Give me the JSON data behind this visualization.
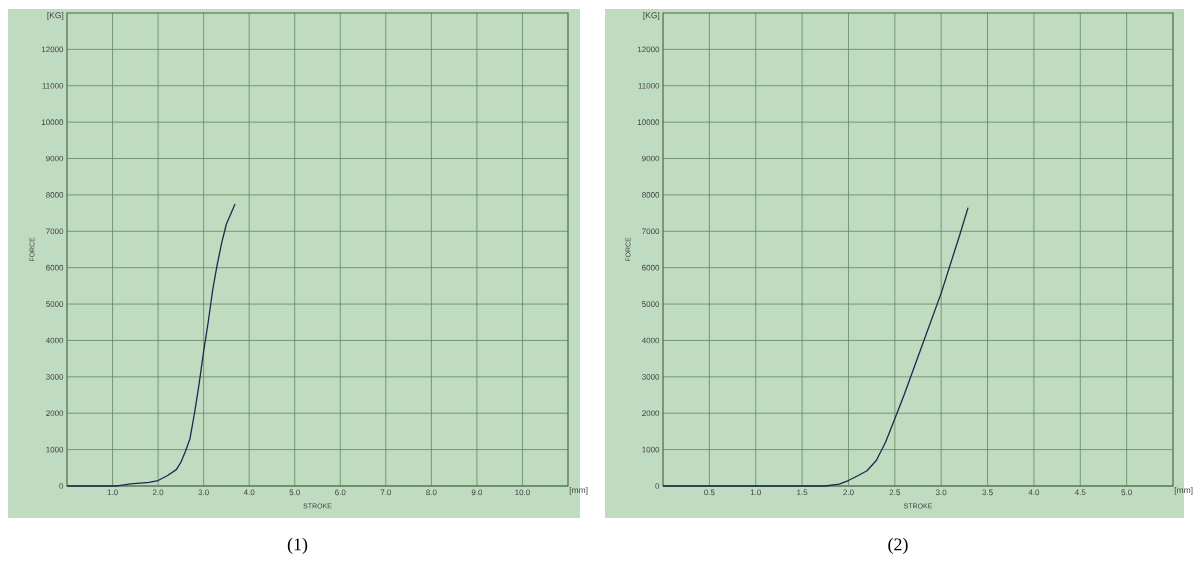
{
  "chart_data": [
    {
      "type": "line",
      "title": "(1)",
      "xlabel": "STROKE",
      "ylabel": "FORCE",
      "annotations": [
        "[KG]",
        "[mm]"
      ],
      "series": [
        {
          "color": "#1c2850",
          "x": [
            0,
            0.5,
            1.1,
            1.4,
            1.8,
            2.0,
            2.2,
            2.4,
            2.5,
            2.6,
            2.7,
            2.8,
            2.9,
            3.0,
            3.1,
            3.2,
            3.3,
            3.4,
            3.5,
            3.69
          ],
          "values": [
            0,
            0,
            0,
            60,
            100,
            150,
            280,
            450,
            650,
            950,
            1300,
            2000,
            2800,
            3700,
            4500,
            5400,
            6100,
            6700,
            7200,
            7750
          ]
        }
      ],
      "xlim": [
        0,
        11
      ],
      "ylim": [
        0,
        13000
      ],
      "xticks": [
        {
          "value": 1,
          "label": "1.0"
        },
        {
          "value": 2,
          "label": "2.0"
        },
        {
          "value": 3,
          "label": "3.0"
        },
        {
          "value": 4,
          "label": "4.0"
        },
        {
          "value": 5,
          "label": "5.0"
        },
        {
          "value": 6,
          "label": "6.0"
        },
        {
          "value": 7,
          "label": "7.0"
        },
        {
          "value": 8,
          "label": "8.0"
        },
        {
          "value": 9,
          "label": "9.0"
        },
        {
          "value": 10,
          "label": "10.0"
        }
      ],
      "yticks": [
        0,
        1000,
        2000,
        3000,
        4000,
        5000,
        6000,
        7000,
        8000,
        9000,
        10000,
        11000,
        12000
      ],
      "grid": true
    },
    {
      "type": "line",
      "title": "(2)",
      "xlabel": "STROKE",
      "ylabel": "FORCE",
      "annotations": [
        "[KG]",
        "[mm]"
      ],
      "series": [
        {
          "color": "#1c2850",
          "x": [
            0,
            1.0,
            1.75,
            1.9,
            2.0,
            2.1,
            2.2,
            2.3,
            2.4,
            2.5,
            2.6,
            2.7,
            2.8,
            2.9,
            3.0,
            3.1,
            3.2,
            3.29
          ],
          "values": [
            0,
            0,
            0,
            50,
            150,
            280,
            420,
            700,
            1200,
            1850,
            2500,
            3200,
            3900,
            4600,
            5300,
            6100,
            6900,
            7650
          ]
        }
      ],
      "xlim": [
        0,
        5.5
      ],
      "ylim": [
        0,
        13000
      ],
      "xticks": [
        {
          "value": 0.5,
          "label": "0.5"
        },
        {
          "value": 1,
          "label": "1.0"
        },
        {
          "value": 1.5,
          "label": "1.5"
        },
        {
          "value": 2,
          "label": "2.0"
        },
        {
          "value": 2.5,
          "label": "2.5"
        },
        {
          "value": 3,
          "label": "3.0"
        },
        {
          "value": 3.5,
          "label": "3.5"
        },
        {
          "value": 4,
          "label": "4.0"
        },
        {
          "value": 4.5,
          "label": "4.5"
        },
        {
          "value": 5,
          "label": "5.0"
        }
      ],
      "yticks": [
        0,
        1000,
        2000,
        3000,
        4000,
        5000,
        6000,
        7000,
        8000,
        9000,
        10000,
        11000,
        12000
      ],
      "grid": true
    }
  ]
}
